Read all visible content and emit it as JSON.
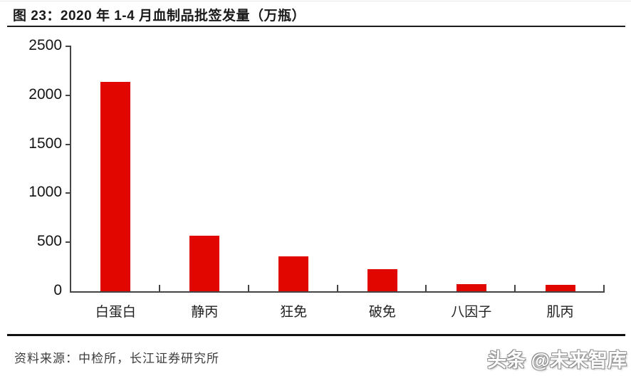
{
  "figure": {
    "title": "图 23：2020 年 1-4 月血制品批签发量（万瓶）",
    "source": "资料来源：中检所，长江证券研究所",
    "watermark": "头条 @未来智库"
  },
  "chart_data": {
    "type": "bar",
    "title": "2020 年 1-4 月血制品批签发量（万瓶）",
    "categories": [
      "白蛋白",
      "静丙",
      "狂免",
      "破免",
      "八因子",
      "肌丙"
    ],
    "values": [
      2140,
      565,
      355,
      225,
      70,
      65
    ],
    "xlabel": "",
    "ylabel": "",
    "ylim": [
      0,
      2500
    ],
    "yticks": [
      0,
      500,
      1000,
      1500,
      2000,
      2500
    ],
    "bar_color": "#e10600",
    "axis_color": "#454545",
    "grid": false,
    "legend": false
  }
}
